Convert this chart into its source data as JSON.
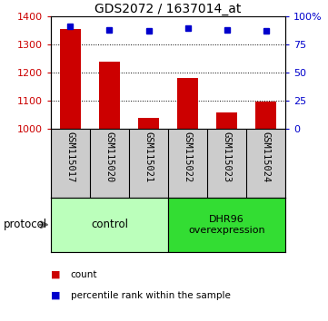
{
  "title": "GDS2072 / 1637014_at",
  "samples": [
    "GSM115017",
    "GSM115020",
    "GSM115021",
    "GSM115022",
    "GSM115023",
    "GSM115024"
  ],
  "counts": [
    1355,
    1237,
    1038,
    1178,
    1058,
    1097
  ],
  "percentile_ranks": [
    91,
    88,
    87,
    89,
    88,
    87
  ],
  "ylim_left": [
    1000,
    1400
  ],
  "yticks_left": [
    1000,
    1100,
    1200,
    1300,
    1400
  ],
  "ylim_right": [
    0,
    100
  ],
  "yticks_right": [
    0,
    25,
    50,
    75,
    100
  ],
  "bar_color": "#cc0000",
  "dot_color": "#0000cc",
  "bar_width": 0.55,
  "control_color": "#bbffbb",
  "dhr_color": "#33dd33",
  "label_area_bg": "#cccccc",
  "protocol_label": "protocol",
  "legend_items": [
    {
      "color": "#cc0000",
      "label": "count"
    },
    {
      "color": "#0000cc",
      "label": "percentile rank within the sample"
    }
  ]
}
